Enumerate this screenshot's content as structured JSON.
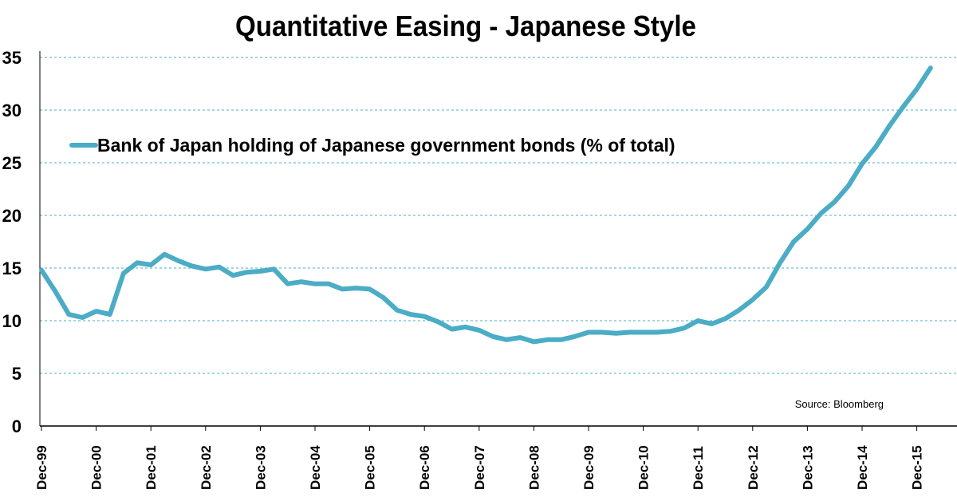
{
  "chart_data": {
    "type": "line",
    "title": "Quantitative Easing - Japanese Style",
    "xlabel": "",
    "ylabel": "",
    "ylim": [
      0,
      35
    ],
    "yticks": [
      0,
      5,
      10,
      15,
      20,
      25,
      30,
      35
    ],
    "x_tick_labels": [
      "Dec-99",
      "Dec-00",
      "Dec-01",
      "Dec-02",
      "Dec-03",
      "Dec-04",
      "Dec-05",
      "Dec-06",
      "Dec-07",
      "Dec-08",
      "Dec-09",
      "Dec-10",
      "Dec-11",
      "Dec-12",
      "Dec-13",
      "Dec-14",
      "Dec-15"
    ],
    "grid": "horizontal dashed",
    "legend_position": "upper-left",
    "annotation": "Source: Bloomberg",
    "series": [
      {
        "name": "Bank of Japan holding of Japanese government bonds (% of total)",
        "color": "#4bacc6",
        "x": [
          "Dec-99",
          "Mar-00",
          "Jun-00",
          "Sep-00",
          "Dec-00",
          "Mar-01",
          "Jun-01",
          "Sep-01",
          "Dec-01",
          "Mar-02",
          "Jun-02",
          "Sep-02",
          "Dec-02",
          "Mar-03",
          "Jun-03",
          "Sep-03",
          "Dec-03",
          "Mar-04",
          "Jun-04",
          "Sep-04",
          "Dec-04",
          "Mar-05",
          "Jun-05",
          "Sep-05",
          "Dec-05",
          "Mar-06",
          "Jun-06",
          "Sep-06",
          "Dec-06",
          "Mar-07",
          "Jun-07",
          "Sep-07",
          "Dec-07",
          "Mar-08",
          "Jun-08",
          "Sep-08",
          "Dec-08",
          "Mar-09",
          "Jun-09",
          "Sep-09",
          "Dec-09",
          "Mar-10",
          "Jun-10",
          "Sep-10",
          "Dec-10",
          "Mar-11",
          "Jun-11",
          "Sep-11",
          "Dec-11",
          "Mar-12",
          "Jun-12",
          "Sep-12",
          "Dec-12",
          "Mar-13",
          "Jun-13",
          "Sep-13",
          "Dec-13",
          "Mar-14",
          "Jun-14",
          "Sep-14",
          "Dec-14",
          "Mar-15",
          "Jun-15",
          "Sep-15",
          "Dec-15",
          "Mar-16"
        ],
        "values": [
          14.8,
          12.8,
          10.6,
          10.3,
          10.9,
          10.6,
          14.5,
          15.5,
          15.3,
          16.3,
          15.7,
          15.2,
          14.9,
          15.1,
          14.3,
          14.6,
          14.7,
          14.9,
          13.5,
          13.7,
          13.5,
          13.5,
          13.0,
          13.1,
          13.0,
          12.2,
          11.0,
          10.6,
          10.4,
          9.9,
          9.2,
          9.4,
          9.1,
          8.5,
          8.2,
          8.4,
          8.0,
          8.2,
          8.2,
          8.5,
          8.9,
          8.9,
          8.8,
          8.9,
          8.9,
          8.9,
          9.0,
          9.3,
          10.0,
          9.7,
          10.2,
          11.0,
          12.0,
          13.2,
          15.5,
          17.5,
          18.7,
          20.2,
          21.3,
          22.8,
          24.9,
          26.5,
          28.5,
          30.3,
          32.0,
          34.0
        ]
      }
    ]
  }
}
